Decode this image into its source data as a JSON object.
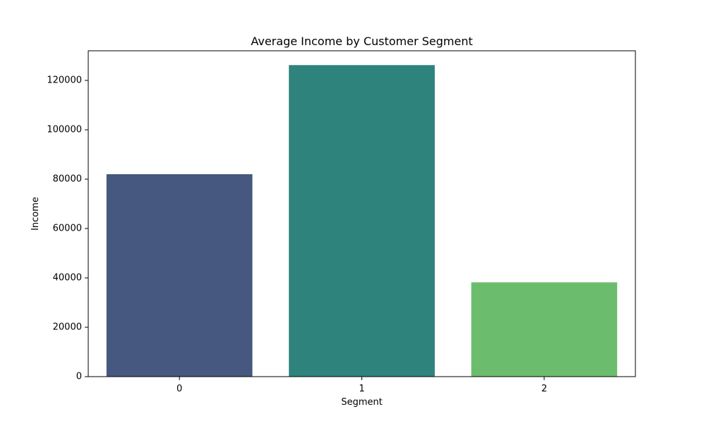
{
  "chart_data": {
    "type": "bar",
    "title": "Average Income by Customer Segment",
    "xlabel": "Segment",
    "ylabel": "Income",
    "categories": [
      "0",
      "1",
      "2"
    ],
    "values": [
      82000,
      126200,
      38200
    ],
    "colors": [
      "#46587f",
      "#2e837d",
      "#6bbd6d"
    ],
    "ylim": [
      0,
      132000
    ],
    "yticks": [
      0,
      20000,
      40000,
      60000,
      80000,
      100000,
      120000
    ],
    "ytick_labels": [
      "0",
      "20000",
      "40000",
      "60000",
      "80000",
      "100000",
      "120000"
    ],
    "grid": false,
    "legend": "none"
  }
}
